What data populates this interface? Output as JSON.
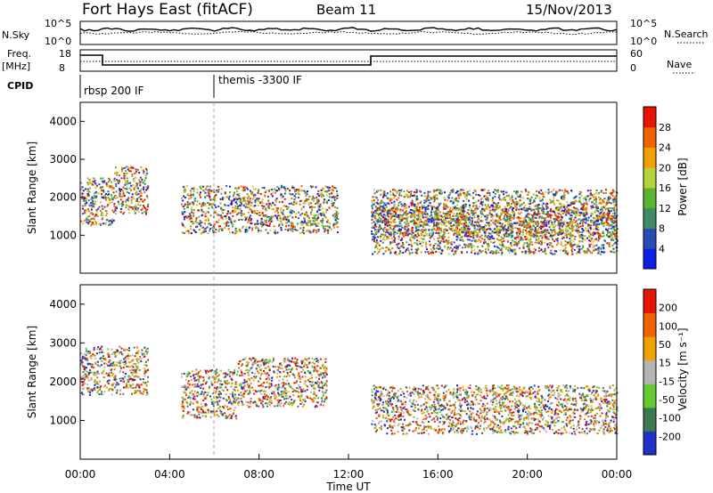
{
  "header": {
    "station": "Fort Hays East (fitACF)",
    "beam": "Beam 11",
    "date": "15/Nov/2013"
  },
  "top_panel": {
    "nsky_label": "N.Sky",
    "nsky_ticks": [
      "10^5",
      "10^0"
    ],
    "nsearch_label": "N.Search",
    "nsearch_ticks": [
      "10^5",
      "10^0"
    ],
    "freq_label": "Freq.",
    "freq_unit": "[MHz]",
    "freq_ticks": [
      "18",
      "8"
    ],
    "nave_label": "Nave",
    "nave_ticks": [
      "60",
      "0"
    ],
    "cpid_label": "CPID",
    "cpid_segments": [
      {
        "label": "rbsp 200 IF",
        "start_hour": 0
      },
      {
        "label": "themis -3300 IF",
        "start_hour": 6
      }
    ]
  },
  "chart_data": [
    {
      "type": "heatmap",
      "name": "power",
      "ylabel": "Slant Range [km]",
      "xlabel": "",
      "yticks": [
        1000,
        2000,
        3000,
        4000
      ],
      "ylim": [
        0,
        4500
      ],
      "colorbar_label": "Power [dB]",
      "colorbar_ticks": [
        "4",
        "8",
        "12",
        "16",
        "20",
        "24",
        "28"
      ],
      "colorbar_colors": [
        "#0a1ee6",
        "#2a4ab4",
        "#3c8c64",
        "#5ab432",
        "#b4d23c",
        "#f0a000",
        "#f06400",
        "#e61400"
      ],
      "features": [
        {
          "x_start_hour": 0.0,
          "x_end_hour": 1.5,
          "y_center_km": 1900,
          "value_db": 10
        },
        {
          "x_start_hour": 1.5,
          "x_end_hour": 3.0,
          "y_center_km": 2200,
          "value_db": 8
        },
        {
          "x_start_hour": 4.5,
          "x_end_hour": 11.5,
          "y_center_km": 1700,
          "value_db": 14
        },
        {
          "x_start_hour": 13.0,
          "x_end_hour": 24.0,
          "y_center_km": 1150,
          "value_db": 28
        },
        {
          "x_start_hour": 13.0,
          "x_end_hour": 24.0,
          "y_center_km": 1600,
          "value_db": 16
        }
      ]
    },
    {
      "type": "heatmap",
      "name": "velocity",
      "ylabel": "Slant Range [km]",
      "xlabel": "Time UT",
      "yticks": [
        1000,
        2000,
        3000,
        4000
      ],
      "ylim": [
        0,
        4500
      ],
      "xticks": [
        "00:00",
        "04:00",
        "08:00",
        "12:00",
        "16:00",
        "20:00",
        "00:00"
      ],
      "colorbar_label": "Velocity [m s⁻¹]",
      "colorbar_ticks": [
        "200",
        "100",
        "50",
        "15",
        "-15",
        "-50",
        "-100",
        "-200"
      ],
      "colorbar_colors": [
        "#1e32c8",
        "#3c7850",
        "#64c832",
        "#b4b4b4",
        "#f0a000",
        "#f06400",
        "#e61400"
      ],
      "features": [
        {
          "x_start_hour": 0.0,
          "x_end_hour": 3.0,
          "y_center_km": 2300,
          "value_ms": 0
        },
        {
          "x_start_hour": 4.5,
          "x_end_hour": 7.0,
          "y_center_km": 1700,
          "value_ms": 60
        },
        {
          "x_start_hour": 7.0,
          "x_end_hour": 11.0,
          "y_center_km": 2000,
          "value_ms": -30
        },
        {
          "x_start_hour": 13.0,
          "x_end_hour": 24.0,
          "y_center_km": 1300,
          "value_ms": 0
        }
      ]
    }
  ]
}
